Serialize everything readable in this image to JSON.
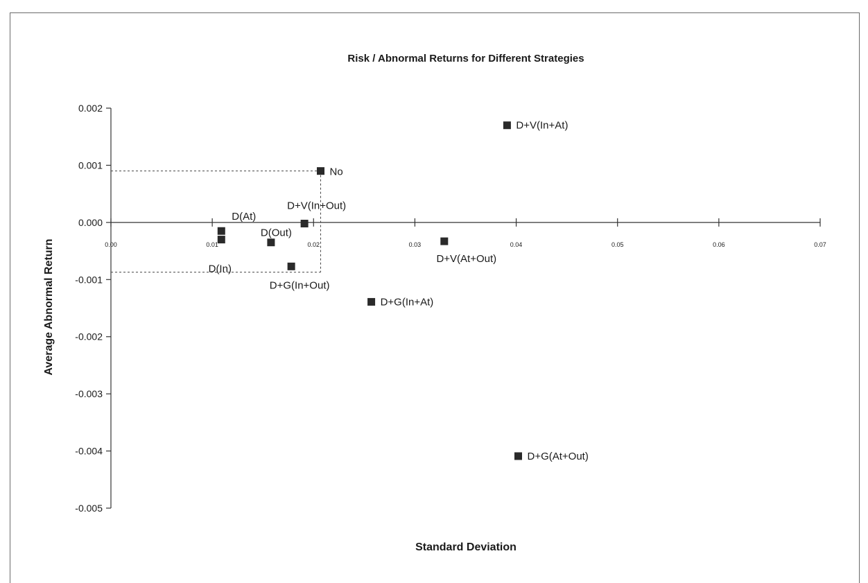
{
  "chart_data": {
    "type": "scatter",
    "title": "Risk / Abnormal Returns for Different Strategies",
    "xlabel": "Standard Deviation",
    "ylabel": "Average Abnormal Return",
    "xlim": [
      0,
      0.07
    ],
    "ylim": [
      -0.005,
      0.002
    ],
    "xticks": [
      "0.00",
      "0.01",
      "0.02",
      "0.03",
      "0.04",
      "0.05",
      "0.06",
      "0.07"
    ],
    "xtick_values": [
      0,
      0.01,
      0.02,
      0.03,
      0.04,
      0.05,
      0.06,
      0.07
    ],
    "yticks": [
      "0.002",
      "0.001",
      "0.000",
      "-0.001",
      "-0.002",
      "-0.003",
      "-0.004",
      "-0.005"
    ],
    "ytick_values": [
      0.002,
      0.001,
      0,
      -0.001,
      -0.002,
      -0.003,
      -0.004,
      -0.005
    ],
    "grid": false,
    "points": [
      {
        "label": "No",
        "x": 0.0207,
        "y": 0.0009
      },
      {
        "label": "D+V(In+At)",
        "x": 0.0391,
        "y": 0.0017
      },
      {
        "label": "D(At)",
        "x": 0.0109,
        "y": -0.00015
      },
      {
        "label": "D(In)",
        "x": 0.0109,
        "y": -0.0003
      },
      {
        "label": "D(Out)",
        "x": 0.0158,
        "y": -0.00035
      },
      {
        "label": "D+V(In+Out)",
        "x": 0.0191,
        "y": -2e-05
      },
      {
        "label": "D+V(At+Out)",
        "x": 0.0329,
        "y": -0.00033
      },
      {
        "label": "D+G(In+Out)",
        "x": 0.0178,
        "y": -0.00077
      },
      {
        "label": "D+G(In+At)",
        "x": 0.0257,
        "y": -0.00139
      },
      {
        "label": "D+G(At+Out)",
        "x": 0.0402,
        "y": -0.00409
      }
    ],
    "reference_lines": [
      {
        "from": [
          0,
          0.0009
        ],
        "to": [
          0.0207,
          0.0009
        ]
      },
      {
        "from": [
          0.0207,
          0.0009
        ],
        "to": [
          0.0207,
          -0.00087
        ]
      },
      {
        "from": [
          0,
          -0.00087
        ],
        "to": [
          0.0207,
          -0.00087
        ]
      }
    ]
  }
}
